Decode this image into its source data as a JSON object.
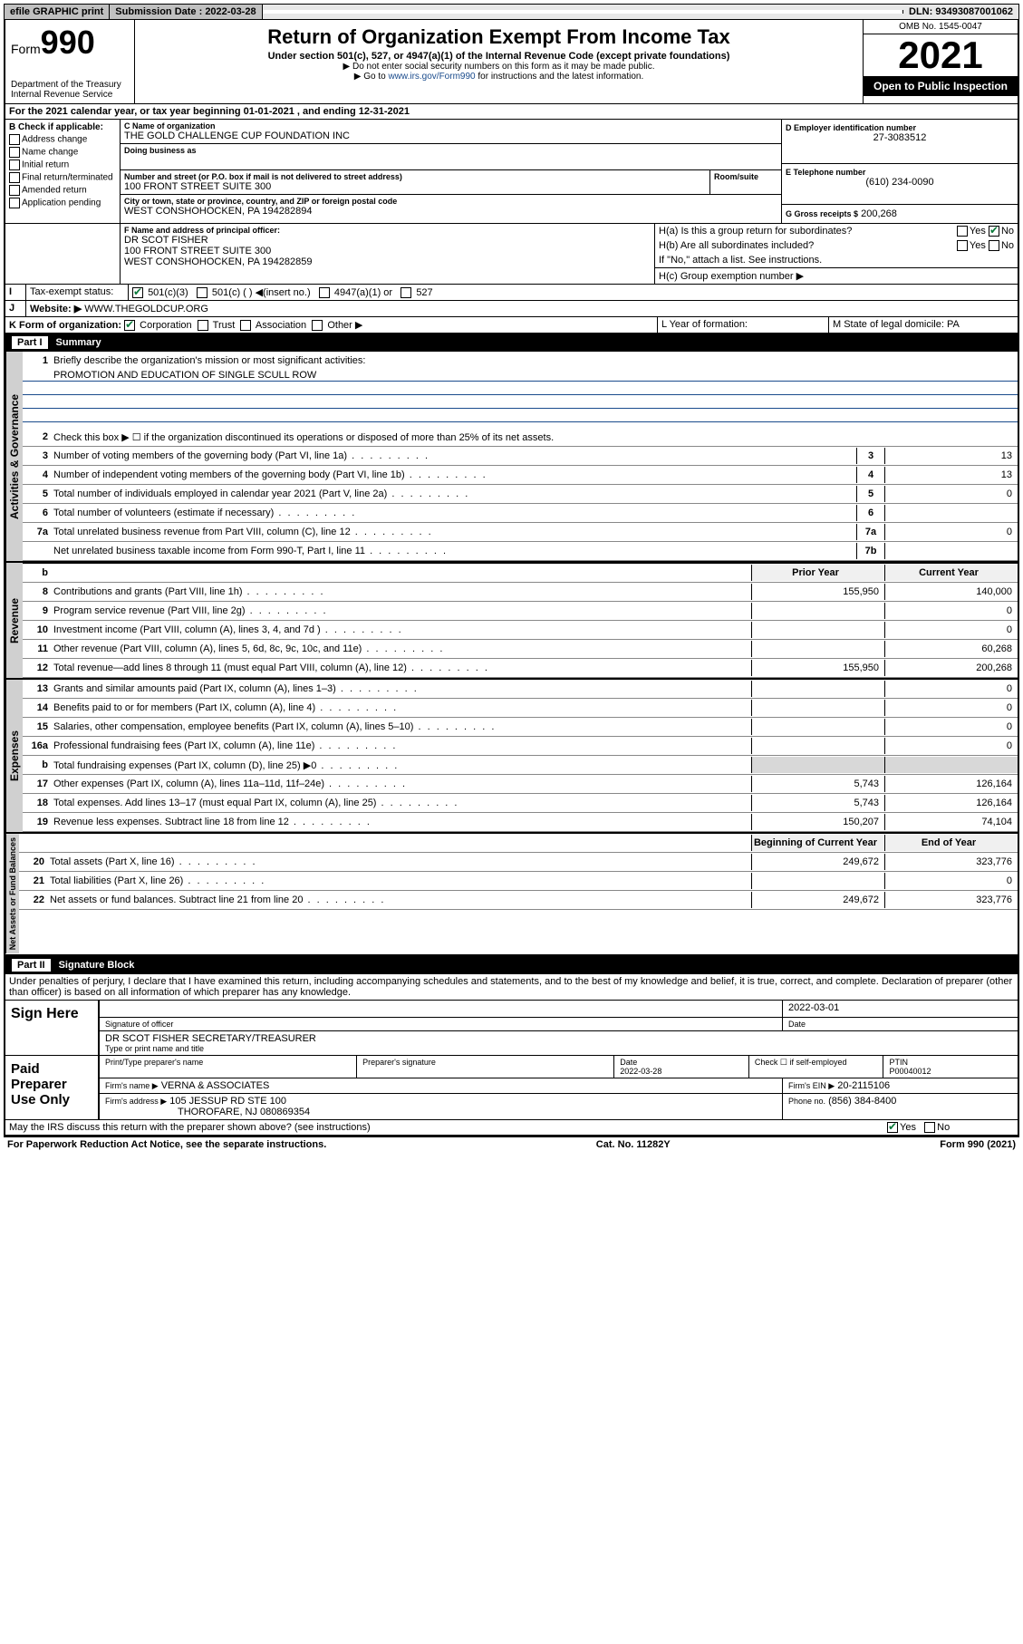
{
  "topbar": {
    "efile": "efile GRAPHIC print",
    "submission_label": "Submission Date : 2022-03-28",
    "dln": "DLN: 93493087001062"
  },
  "header": {
    "form_prefix": "Form",
    "form_number": "990",
    "title": "Return of Organization Exempt From Income Tax",
    "subtitle": "Under section 501(c), 527, or 4947(a)(1) of the Internal Revenue Code (except private foundations)",
    "note1": "▶ Do not enter social security numbers on this form as it may be made public.",
    "note2_pre": "▶ Go to ",
    "note2_link": "www.irs.gov/Form990",
    "note2_post": " for instructions and the latest information.",
    "dept": "Department of the Treasury\nInternal Revenue Service",
    "omb": "OMB No. 1545-0047",
    "year": "2021",
    "open": "Open to Public Inspection"
  },
  "A": {
    "text": "For the 2021 calendar year, or tax year beginning 01-01-2021   , and ending 12-31-2021"
  },
  "B": {
    "label": "B Check if applicable:",
    "items": [
      "Address change",
      "Name change",
      "Initial return",
      "Final return/terminated",
      "Amended return",
      "Application pending"
    ]
  },
  "C": {
    "name_label": "C Name of organization",
    "name": "THE GOLD CHALLENGE CUP FOUNDATION INC",
    "dba_label": "Doing business as",
    "street_label": "Number and street (or P.O. box if mail is not delivered to street address)",
    "room_label": "Room/suite",
    "street": "100 FRONT STREET SUITE 300",
    "city_label": "City or town, state or province, country, and ZIP or foreign postal code",
    "city": "WEST CONSHOHOCKEN, PA  194282894"
  },
  "D": {
    "label": "D Employer identification number",
    "val": "27-3083512"
  },
  "E": {
    "label": "E Telephone number",
    "val": "(610) 234-0090"
  },
  "G": {
    "label": "G Gross receipts $",
    "val": "200,268"
  },
  "F": {
    "label": "F Name and address of principal officer:",
    "name": "DR SCOT FISHER",
    "addr1": "100 FRONT STREET SUITE 300",
    "addr2": "WEST CONSHOHOCKEN, PA  194282859"
  },
  "H": {
    "a": "H(a)  Is this a group return for subordinates?",
    "b": "H(b)  Are all subordinates included?",
    "note": "If \"No,\" attach a list. See instructions.",
    "c": "H(c)  Group exemption number ▶"
  },
  "I": {
    "label": "Tax-exempt status:",
    "opts": [
      "501(c)(3)",
      "501(c) (  ) ◀(insert no.)",
      "4947(a)(1) or",
      "527"
    ]
  },
  "J": {
    "label": "Website: ▶",
    "val": "WWW.THEGOLDCUP.ORG"
  },
  "K": {
    "label": "K Form of organization:",
    "opts": [
      "Corporation",
      "Trust",
      "Association",
      "Other ▶"
    ]
  },
  "L": {
    "label": "L Year of formation:"
  },
  "M": {
    "label": "M State of legal domicile: PA"
  },
  "part1": {
    "tag": "Part I",
    "title": "Summary",
    "l1": "Briefly describe the organization's mission or most significant activities:",
    "mission": "PROMOTION AND EDUCATION OF SINGLE SCULL ROW",
    "l2": "Check this box ▶ ☐  if the organization discontinued its operations or disposed of more than 25% of its net assets.",
    "lines_gov": [
      {
        "n": "3",
        "d": "Number of voting members of the governing body (Part VI, line 1a)",
        "box": "3",
        "v": "13"
      },
      {
        "n": "4",
        "d": "Number of independent voting members of the governing body (Part VI, line 1b)",
        "box": "4",
        "v": "13"
      },
      {
        "n": "5",
        "d": "Total number of individuals employed in calendar year 2021 (Part V, line 2a)",
        "box": "5",
        "v": "0"
      },
      {
        "n": "6",
        "d": "Total number of volunteers (estimate if necessary)",
        "box": "6",
        "v": ""
      },
      {
        "n": "7a",
        "d": "Total unrelated business revenue from Part VIII, column (C), line 12",
        "box": "7a",
        "v": "0"
      },
      {
        "n": "",
        "d": "Net unrelated business taxable income from Form 990-T, Part I, line 11",
        "box": "7b",
        "v": ""
      }
    ],
    "hdr_prior": "Prior Year",
    "hdr_curr": "Current Year",
    "rev": [
      {
        "n": "8",
        "d": "Contributions and grants (Part VIII, line 1h)",
        "p": "155,950",
        "c": "140,000"
      },
      {
        "n": "9",
        "d": "Program service revenue (Part VIII, line 2g)",
        "p": "",
        "c": "0"
      },
      {
        "n": "10",
        "d": "Investment income (Part VIII, column (A), lines 3, 4, and 7d )",
        "p": "",
        "c": "0"
      },
      {
        "n": "11",
        "d": "Other revenue (Part VIII, column (A), lines 5, 6d, 8c, 9c, 10c, and 11e)",
        "p": "",
        "c": "60,268"
      },
      {
        "n": "12",
        "d": "Total revenue—add lines 8 through 11 (must equal Part VIII, column (A), line 12)",
        "p": "155,950",
        "c": "200,268"
      }
    ],
    "exp": [
      {
        "n": "13",
        "d": "Grants and similar amounts paid (Part IX, column (A), lines 1–3)",
        "p": "",
        "c": "0"
      },
      {
        "n": "14",
        "d": "Benefits paid to or for members (Part IX, column (A), line 4)",
        "p": "",
        "c": "0"
      },
      {
        "n": "15",
        "d": "Salaries, other compensation, employee benefits (Part IX, column (A), lines 5–10)",
        "p": "",
        "c": "0"
      },
      {
        "n": "16a",
        "d": "Professional fundraising fees (Part IX, column (A), line 11e)",
        "p": "",
        "c": "0"
      },
      {
        "n": "b",
        "d": "Total fundraising expenses (Part IX, column (D), line 25) ▶0",
        "p": "shade",
        "c": "shade"
      },
      {
        "n": "17",
        "d": "Other expenses (Part IX, column (A), lines 11a–11d, 11f–24e)",
        "p": "5,743",
        "c": "126,164"
      },
      {
        "n": "18",
        "d": "Total expenses. Add lines 13–17 (must equal Part IX, column (A), line 25)",
        "p": "5,743",
        "c": "126,164"
      },
      {
        "n": "19",
        "d": "Revenue less expenses. Subtract line 18 from line 12",
        "p": "150,207",
        "c": "74,104"
      }
    ],
    "hdr_beg": "Beginning of Current Year",
    "hdr_end": "End of Year",
    "net": [
      {
        "n": "20",
        "d": "Total assets (Part X, line 16)",
        "p": "249,672",
        "c": "323,776"
      },
      {
        "n": "21",
        "d": "Total liabilities (Part X, line 26)",
        "p": "",
        "c": "0"
      },
      {
        "n": "22",
        "d": "Net assets or fund balances. Subtract line 21 from line 20",
        "p": "249,672",
        "c": "323,776"
      }
    ]
  },
  "sidelabels": {
    "gov": "Activities & Governance",
    "rev": "Revenue",
    "exp": "Expenses",
    "net": "Net Assets or Fund Balances"
  },
  "part2": {
    "tag": "Part II",
    "title": "Signature Block",
    "decl": "Under penalties of perjury, I declare that I have examined this return, including accompanying schedules and statements, and to the best of my knowledge and belief, it is true, correct, and complete. Declaration of preparer (other than officer) is based on all information of which preparer has any knowledge.",
    "sign_here": "Sign Here",
    "sig_officer": "Signature of officer",
    "date": "Date",
    "date_val": "2022-03-01",
    "officer": "DR SCOT FISHER  SECRETARY/TREASURER",
    "officer_label": "Type or print name and title",
    "paid": "Paid Preparer Use Only",
    "prep_name_label": "Print/Type preparer's name",
    "prep_sig_label": "Preparer's signature",
    "prep_date_label": "Date",
    "prep_date": "2022-03-28",
    "self_emp": "Check ☐ if self-employed",
    "ptin_label": "PTIN",
    "ptin": "P00040012",
    "firm_name_label": "Firm's name    ▶",
    "firm_name": "VERNA & ASSOCIATES",
    "firm_ein_label": "Firm's EIN ▶",
    "firm_ein": "20-2115106",
    "firm_addr_label": "Firm's address ▶",
    "firm_addr1": "105 JESSUP RD STE 100",
    "firm_addr2": "THOROFARE, NJ  080869354",
    "phone_label": "Phone no.",
    "phone": "(856) 384-8400",
    "discuss": "May the IRS discuss this return with the preparer shown above? (see instructions)"
  },
  "footer": {
    "left": "For Paperwork Reduction Act Notice, see the separate instructions.",
    "mid": "Cat. No. 11282Y",
    "right": "Form 990 (2021)"
  },
  "yesno": {
    "yes": "Yes",
    "no": "No"
  }
}
